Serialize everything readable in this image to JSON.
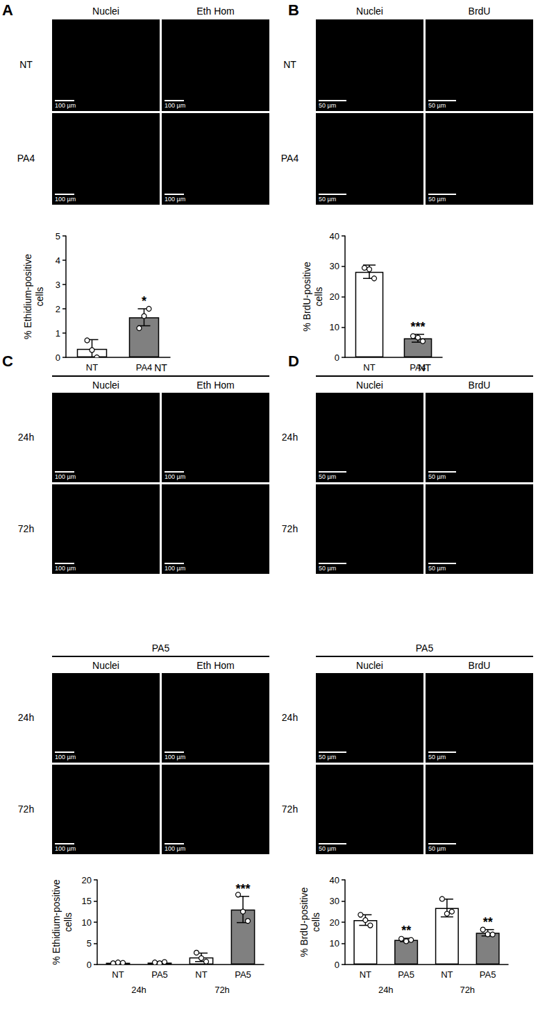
{
  "panels": [
    {
      "letter": "A",
      "columns": [
        "Nuclei",
        "Eth Hom"
      ],
      "rows": [
        "NT",
        "PA4"
      ],
      "scale_bar": "100 µm"
    },
    {
      "letter": "B",
      "columns": [
        "Nuclei",
        "BrdU"
      ],
      "rows": [
        "NT",
        "PA4"
      ],
      "scale_bar": "50 µm"
    },
    {
      "letter": "C",
      "columns": [
        "Nuclei",
        "Eth Hom"
      ],
      "groups": [
        {
          "title": "NT",
          "rows": [
            "24h",
            "72h"
          ]
        },
        {
          "title": "PA5",
          "rows": [
            "24h",
            "72h"
          ]
        }
      ],
      "scale_bar": "100 µm"
    },
    {
      "letter": "D",
      "columns": [
        "Nuclei",
        "BrdU"
      ],
      "groups": [
        {
          "title": "NT",
          "rows": [
            "24h",
            "72h"
          ]
        },
        {
          "title": "PA5",
          "rows": [
            "24h",
            "72h"
          ]
        }
      ],
      "scale_bar": "50 µm"
    }
  ],
  "chart_data": [
    {
      "type": "bar",
      "ylabel": "% Ethidium-positive cells",
      "categories": [
        "NT",
        "PA4"
      ],
      "values": [
        0.35,
        1.65
      ],
      "errors": [
        0.38,
        0.35
      ],
      "points": [
        [
          0.7,
          0.3,
          0.0
        ],
        [
          1.2,
          1.7,
          2.0
        ]
      ],
      "colors": [
        "#ffffff",
        "#808080"
      ],
      "annotations": [
        null,
        "*"
      ],
      "ylim": [
        0,
        5
      ],
      "yticks": [
        0,
        1,
        2,
        3,
        4,
        5
      ],
      "grid": false
    },
    {
      "type": "bar",
      "ylabel": "% BrdU-positive cells",
      "categories": [
        "NT",
        "PA4"
      ],
      "values": [
        28.2,
        6.3
      ],
      "errors": [
        2.2,
        1.3
      ],
      "points": [
        [
          29.5,
          29.0,
          26.0
        ],
        [
          7.0,
          6.5,
          5.3
        ]
      ],
      "colors": [
        "#ffffff",
        "#808080"
      ],
      "annotations": [
        null,
        "***"
      ],
      "ylim": [
        0,
        40
      ],
      "yticks": [
        0,
        10,
        20,
        30,
        40
      ],
      "grid": false
    },
    {
      "type": "bar",
      "ylabel": "% Ethidium-positive cells",
      "categories": [
        "NT",
        "PA5",
        "NT",
        "PA5"
      ],
      "groups": [
        "24h",
        "72h"
      ],
      "values": [
        0.4,
        0.45,
        1.7,
        13.0
      ],
      "errors": [
        0.15,
        0.2,
        1.0,
        3.1
      ],
      "points": [
        [
          0.3,
          0.5,
          0.4
        ],
        [
          0.5,
          0.3,
          0.6
        ],
        [
          2.8,
          1.5,
          0.7
        ],
        [
          16.5,
          12.5,
          10.3
        ]
      ],
      "colors": [
        "#ffffff",
        "#808080",
        "#ffffff",
        "#808080"
      ],
      "annotations": [
        null,
        null,
        null,
        "***"
      ],
      "ylim": [
        0,
        20
      ],
      "yticks": [
        0,
        5,
        10,
        15,
        20
      ],
      "grid": false
    },
    {
      "type": "bar",
      "ylabel": "% BrdU-positive cells",
      "categories": [
        "NT",
        "PA5",
        "NT",
        "PA5"
      ],
      "groups": [
        "24h",
        "72h"
      ],
      "values": [
        21.0,
        11.6,
        26.7,
        15.0
      ],
      "errors": [
        2.5,
        0.8,
        4.2,
        1.5
      ],
      "points": [
        [
          23.5,
          21.0,
          18.5
        ],
        [
          12.2,
          11.0,
          11.6
        ],
        [
          31.0,
          24.0,
          25.0
        ],
        [
          16.5,
          14.3,
          14.2
        ]
      ],
      "colors": [
        "#ffffff",
        "#808080",
        "#ffffff",
        "#808080"
      ],
      "annotations": [
        null,
        "**",
        null,
        "**"
      ],
      "ylim": [
        0,
        40
      ],
      "yticks": [
        0,
        10,
        20,
        30,
        40
      ],
      "grid": false
    }
  ]
}
